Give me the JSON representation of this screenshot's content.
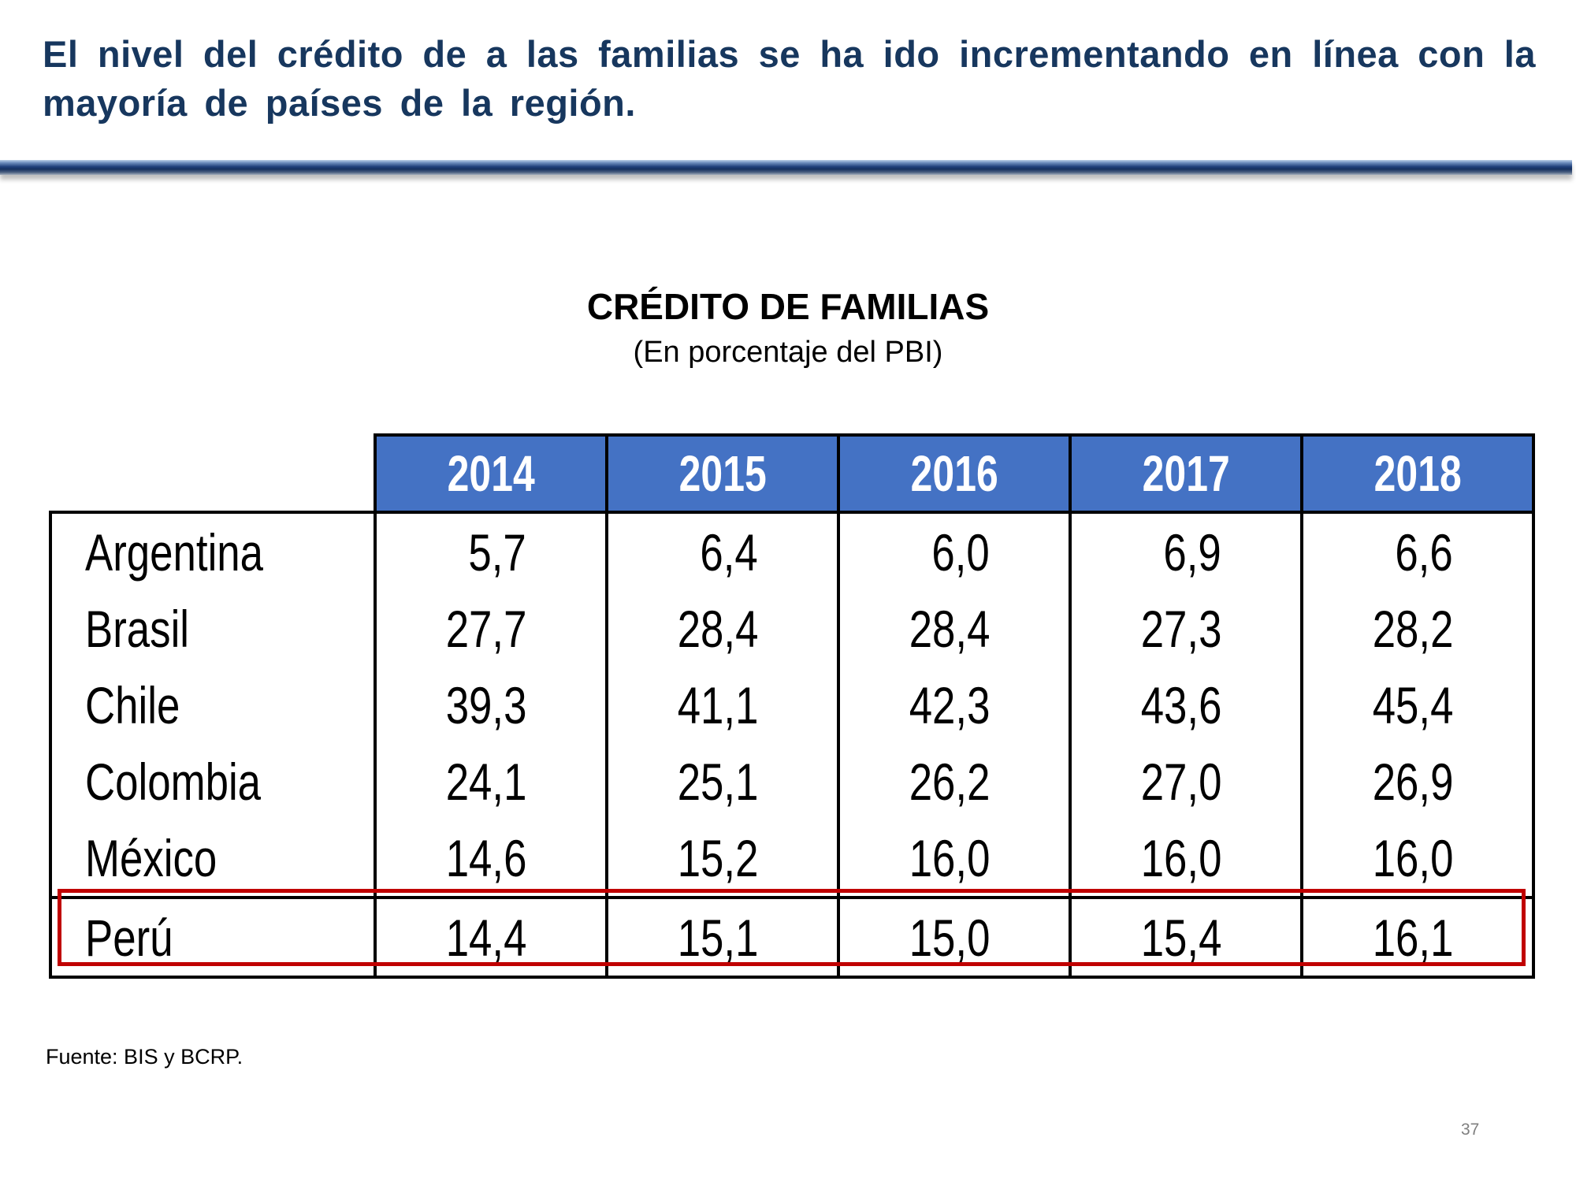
{
  "headline": "El nivel del crédito de a las familias se ha ido incrementando en línea con la mayoría de países de la región.",
  "table": {
    "title": "CRÉDITO DE FAMILIAS",
    "subtitle": "(En porcentaje del PBI)",
    "years": [
      "2014",
      "2015",
      "2016",
      "2017",
      "2018"
    ],
    "rows": [
      {
        "country": "Argentina",
        "values": [
          "5,7",
          "6,4",
          "6,0",
          "6,9",
          "6,6"
        ]
      },
      {
        "country": "Brasil",
        "values": [
          "27,7",
          "28,4",
          "28,4",
          "27,3",
          "28,2"
        ]
      },
      {
        "country": "Chile",
        "values": [
          "39,3",
          "41,1",
          "42,3",
          "43,6",
          "45,4"
        ]
      },
      {
        "country": "Colombia",
        "values": [
          "24,1",
          "25,1",
          "26,2",
          "27,0",
          "26,9"
        ]
      },
      {
        "country": "México",
        "values": [
          "14,6",
          "15,2",
          "16,0",
          "16,0",
          "16,0"
        ]
      },
      {
        "country": "Perú",
        "values": [
          "14,4",
          "15,1",
          "15,0",
          "15,4",
          "16,1"
        ]
      }
    ],
    "highlighted_row": "Perú",
    "colors": {
      "header_bg": "#4472c4",
      "highlight_border": "#c00000",
      "headline": "#17375e"
    }
  },
  "source": "Fuente: BIS y BCRP.",
  "page_number": "37"
}
